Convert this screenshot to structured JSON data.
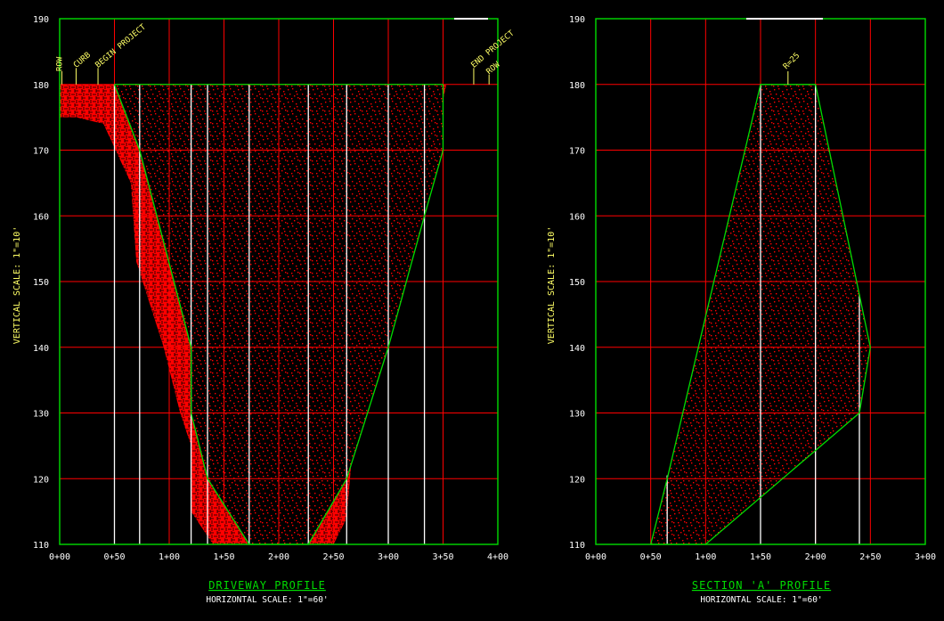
{
  "colors": {
    "background": "#000000",
    "grid_major": "#ff0000",
    "frame": "#00dd00",
    "vertical_guides": "#ffffff",
    "fill": "#ff0000",
    "annotation": "#ffff66",
    "title": "#00dd00"
  },
  "chart_data": [
    {
      "type": "area",
      "title": "DRIVEWAY PROFILE",
      "subtitle": "HORIZONTAL SCALE: 1\"=60'",
      "ylabel": "VERTICAL SCALE: 1\"=10'",
      "xlim": [
        0,
        400
      ],
      "ylim": [
        110,
        190
      ],
      "x_ticks": [
        "0+00",
        "0+50",
        "1+00",
        "1+50",
        "2+00",
        "2+50",
        "3+00",
        "3+50",
        "4+00"
      ],
      "y_ticks": [
        "110",
        "120",
        "130",
        "140",
        "150",
        "160",
        "170",
        "180",
        "190"
      ],
      "annotations": [
        "ROW",
        "CURB",
        "BEGIN PROJECT",
        "END PROJECT",
        "ROW"
      ],
      "stations": [
        50,
        73,
        120,
        135,
        173,
        227,
        262,
        300,
        333
      ],
      "inner_profile": [
        [
          50,
          180
        ],
        [
          73,
          170
        ],
        [
          120,
          140
        ],
        [
          120,
          130
        ],
        [
          135,
          120
        ],
        [
          173,
          110
        ],
        [
          227,
          110
        ],
        [
          262,
          120
        ],
        [
          300,
          140
        ],
        [
          333,
          160
        ],
        [
          350,
          170
        ],
        [
          350,
          180
        ]
      ],
      "outer_profile": [
        [
          0,
          175
        ],
        [
          15,
          175
        ],
        [
          40,
          174
        ],
        [
          65,
          165
        ],
        [
          70,
          153
        ],
        [
          95,
          140
        ],
        [
          110,
          130
        ],
        [
          120,
          125
        ],
        [
          120,
          115
        ],
        [
          140,
          110
        ],
        [
          175,
          110
        ],
        [
          225,
          110
        ],
        [
          250,
          110
        ],
        [
          262,
          114
        ],
        [
          270,
          130
        ],
        [
          300,
          140
        ],
        [
          320,
          160
        ],
        [
          340,
          170
        ],
        [
          353,
          180
        ],
        [
          400,
          180
        ]
      ],
      "fill_top": 180
    },
    {
      "type": "area",
      "title": "SECTION 'A' PROFILE",
      "subtitle": "HORIZONTAL SCALE: 1\"=60'",
      "ylabel": "VERTICAL SCALE: 1\"=10'",
      "xlim": [
        0,
        300
      ],
      "ylim": [
        110,
        190
      ],
      "x_ticks": [
        "0+00",
        "0+50",
        "1+00",
        "1+50",
        "2+00",
        "2+50",
        "3+00"
      ],
      "y_ticks": [
        "110",
        "120",
        "130",
        "140",
        "150",
        "160",
        "170",
        "180",
        "190"
      ],
      "annotations": [
        "R=25"
      ],
      "stations": [
        65,
        150,
        200,
        240
      ],
      "polygon": [
        [
          50,
          110
        ],
        [
          65,
          120
        ],
        [
          150,
          180
        ],
        [
          200,
          180
        ],
        [
          250,
          140
        ],
        [
          240,
          130
        ],
        [
          100,
          110
        ]
      ]
    }
  ]
}
